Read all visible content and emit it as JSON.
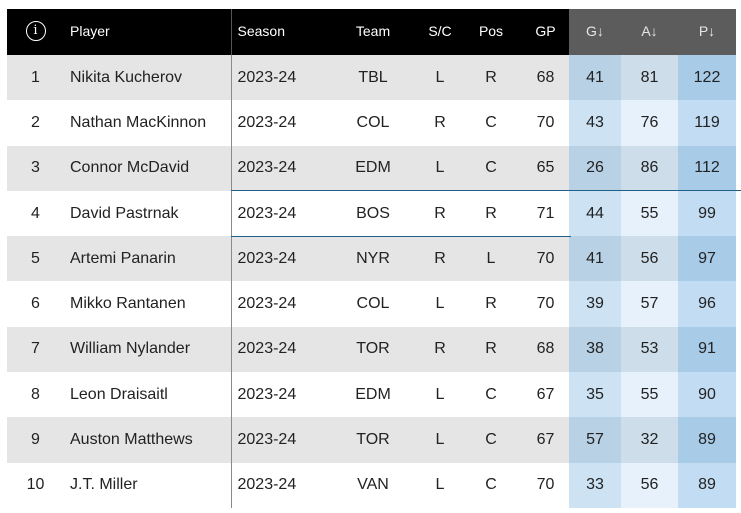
{
  "table": {
    "headers": {
      "info": "i",
      "player": "Player",
      "season": "Season",
      "team": "Team",
      "sc": "S/C",
      "pos": "Pos",
      "gp": "GP",
      "g": "G↓",
      "a": "A↓",
      "p": "P↓"
    },
    "rows": [
      {
        "rank": "1",
        "player": "Nikita Kucherov",
        "season": "2023-24",
        "team": "TBL",
        "sc": "L",
        "pos": "R",
        "gp": "68",
        "g": "41",
        "a": "81",
        "p": "122"
      },
      {
        "rank": "2",
        "player": "Nathan MacKinnon",
        "season": "2023-24",
        "team": "COL",
        "sc": "R",
        "pos": "C",
        "gp": "70",
        "g": "43",
        "a": "76",
        "p": "119"
      },
      {
        "rank": "3",
        "player": "Connor McDavid",
        "season": "2023-24",
        "team": "EDM",
        "sc": "L",
        "pos": "C",
        "gp": "65",
        "g": "26",
        "a": "86",
        "p": "112"
      },
      {
        "rank": "4",
        "player": "David Pastrnak",
        "season": "2023-24",
        "team": "BOS",
        "sc": "R",
        "pos": "R",
        "gp": "71",
        "g": "44",
        "a": "55",
        "p": "99"
      },
      {
        "rank": "5",
        "player": "Artemi Panarin",
        "season": "2023-24",
        "team": "NYR",
        "sc": "R",
        "pos": "L",
        "gp": "70",
        "g": "41",
        "a": "56",
        "p": "97"
      },
      {
        "rank": "6",
        "player": "Mikko Rantanen",
        "season": "2023-24",
        "team": "COL",
        "sc": "L",
        "pos": "R",
        "gp": "70",
        "g": "39",
        "a": "57",
        "p": "96"
      },
      {
        "rank": "7",
        "player": "William Nylander",
        "season": "2023-24",
        "team": "TOR",
        "sc": "R",
        "pos": "R",
        "gp": "68",
        "g": "38",
        "a": "53",
        "p": "91"
      },
      {
        "rank": "8",
        "player": "Leon Draisaitl",
        "season": "2023-24",
        "team": "EDM",
        "sc": "L",
        "pos": "C",
        "gp": "67",
        "g": "35",
        "a": "55",
        "p": "90"
      },
      {
        "rank": "9",
        "player": "Auston Matthews",
        "season": "2023-24",
        "team": "TOR",
        "sc": "L",
        "pos": "C",
        "gp": "67",
        "g": "57",
        "a": "32",
        "p": "89"
      },
      {
        "rank": "10",
        "player": "J.T. Miller",
        "season": "2023-24",
        "team": "VAN",
        "sc": "L",
        "pos": "C",
        "gp": "70",
        "g": "33",
        "a": "56",
        "p": "89"
      }
    ]
  },
  "colors": {
    "header_bg": "#000000",
    "sorted_header_bg": "#5c5c5c",
    "row_odd": "#e5e5e5",
    "row_even": "#ffffff",
    "points_highlight": "#a8cbe8"
  }
}
